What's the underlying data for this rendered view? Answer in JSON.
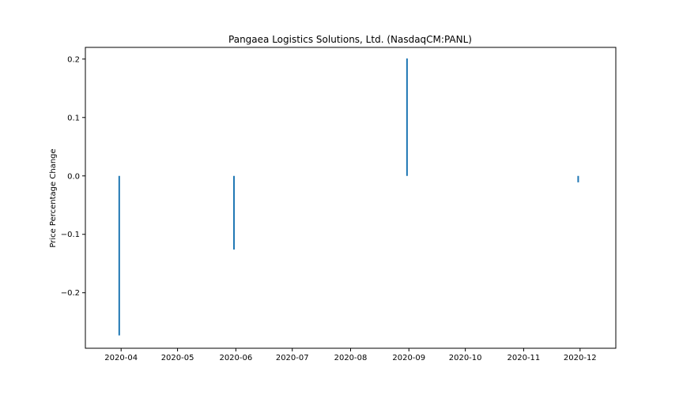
{
  "chart_data": {
    "type": "bar",
    "title": "Pangaea Logistics Solutions, Ltd. (NasdaqCM:PANL)",
    "xlabel": "",
    "ylabel": "Price Percentage Change",
    "x_axis_type": "date",
    "xlim": [
      "2020-03-13",
      "2020-12-20"
    ],
    "ylim": [
      -0.295,
      0.22
    ],
    "x_ticks": [
      "2020-04-01",
      "2020-05-01",
      "2020-06-01",
      "2020-07-01",
      "2020-08-01",
      "2020-09-01",
      "2020-10-01",
      "2020-11-01",
      "2020-12-01"
    ],
    "x_tick_labels": [
      "2020-04",
      "2020-05",
      "2020-06",
      "2020-07",
      "2020-08",
      "2020-09",
      "2020-10",
      "2020-11",
      "2020-12"
    ],
    "y_ticks": [
      -0.2,
      -0.1,
      0.0,
      0.1,
      0.2
    ],
    "y_tick_labels": [
      "−0.2",
      "−0.1",
      "0.0",
      "0.1",
      "0.2"
    ],
    "bar_color": "#1f77b4",
    "grid": false,
    "series": [
      {
        "x": [
          "2020-03-31",
          "2020-05-31",
          "2020-08-31",
          "2020-11-30"
        ],
        "values": [
          -0.273,
          -0.126,
          0.201,
          -0.011
        ]
      }
    ]
  }
}
